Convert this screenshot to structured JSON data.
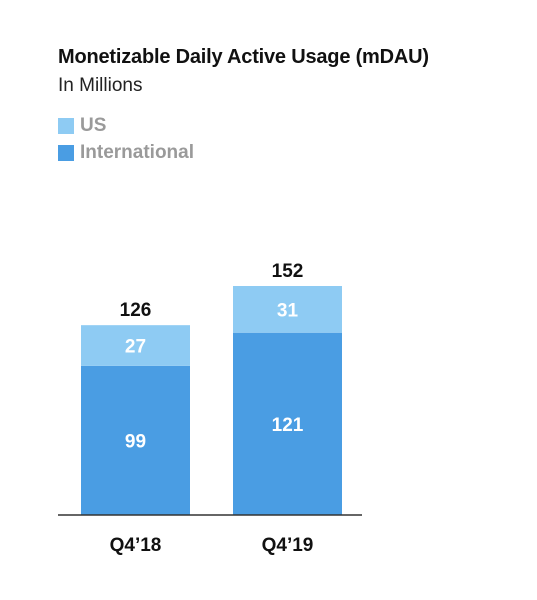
{
  "colors": {
    "us": "#8ecbf3",
    "international": "#4a9de3",
    "text_dark": "#111111",
    "text_white": "#ffffff",
    "legend_text": "#9a9a9a",
    "axis": "#333333"
  },
  "chart_data": {
    "type": "bar",
    "stacked": true,
    "title": "Monetizable Daily Active Usage (mDAU)",
    "subtitle": "In Millions",
    "categories": [
      "Q4’18",
      "Q4’19"
    ],
    "series": [
      {
        "name": "International",
        "values": [
          99,
          121
        ]
      },
      {
        "name": "US",
        "values": [
          27,
          31
        ]
      }
    ],
    "totals": [
      126,
      152
    ],
    "legend": [
      "US",
      "International"
    ],
    "legend_position": "top-left",
    "grid": false,
    "ylim": [
      0,
      152
    ]
  }
}
